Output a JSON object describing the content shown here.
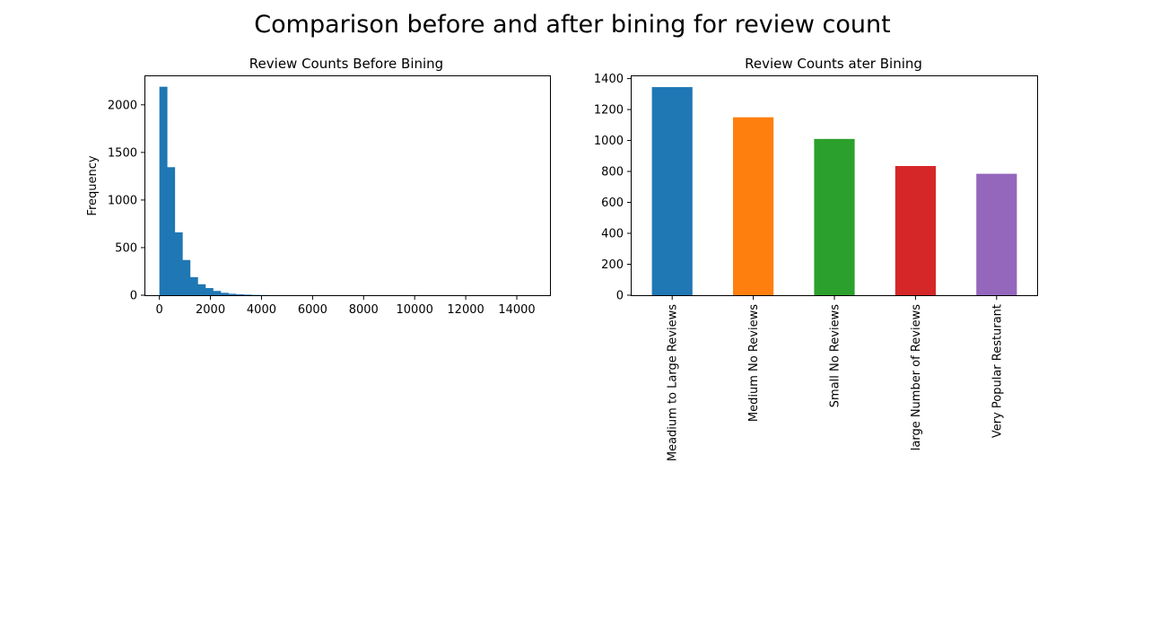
{
  "suptitle": "Comparison before and after bining for review count",
  "chart_data": [
    {
      "type": "bar",
      "subtype": "histogram",
      "title": "Review Counts Before Bining",
      "xlabel": "",
      "ylabel": "Frequency",
      "xlim": [
        -550,
        15300
      ],
      "ylim": [
        0,
        2300
      ],
      "xticks": [
        0,
        2000,
        4000,
        6000,
        8000,
        10000,
        12000,
        14000
      ],
      "yticks": [
        0,
        500,
        1000,
        1500,
        2000
      ],
      "bin_width": 300,
      "bin_start": 0,
      "values": [
        2190,
        1345,
        660,
        370,
        190,
        115,
        75,
        45,
        25,
        15,
        10,
        6,
        3,
        2,
        1
      ],
      "color": "#1f77b4",
      "grid": false,
      "legend": "none"
    },
    {
      "type": "bar",
      "title": "Review Counts ater Bining",
      "xlabel": "",
      "ylabel": "",
      "ylim": [
        0,
        1415
      ],
      "yticks": [
        0,
        200,
        400,
        600,
        800,
        1000,
        1200,
        1400
      ],
      "categories": [
        "Meadium to Large Reviews",
        "Medium No Reviews",
        "Small No Reviews",
        "large Number of Reviews",
        "Very Popular Resturant"
      ],
      "values": [
        1345,
        1150,
        1010,
        835,
        785
      ],
      "colors": [
        "#1f77b4",
        "#ff7f0e",
        "#2ca02c",
        "#d62728",
        "#9467bd"
      ],
      "grid": false,
      "legend": "none"
    }
  ]
}
